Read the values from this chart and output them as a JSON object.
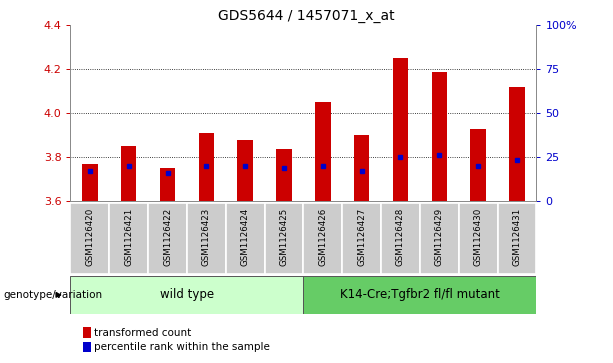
{
  "title": "GDS5644 / 1457071_x_at",
  "samples": [
    "GSM1126420",
    "GSM1126421",
    "GSM1126422",
    "GSM1126423",
    "GSM1126424",
    "GSM1126425",
    "GSM1126426",
    "GSM1126427",
    "GSM1126428",
    "GSM1126429",
    "GSM1126430",
    "GSM1126431"
  ],
  "transformed_count": [
    3.77,
    3.85,
    3.75,
    3.91,
    3.88,
    3.84,
    4.05,
    3.9,
    4.25,
    4.19,
    3.93,
    4.12
  ],
  "percentile_rank": [
    3.74,
    3.76,
    3.73,
    3.76,
    3.76,
    3.75,
    3.76,
    3.74,
    3.8,
    3.81,
    3.76,
    3.79
  ],
  "ymin": 3.6,
  "ymax": 4.4,
  "y_ticks": [
    3.6,
    3.8,
    4.0,
    4.2,
    4.4
  ],
  "right_y_ticks": [
    0,
    25,
    50,
    75,
    100
  ],
  "right_y_labels": [
    "0",
    "25",
    "50",
    "75",
    "100%"
  ],
  "bar_color": "#cc0000",
  "dot_color": "#0000cc",
  "grid_color": "#000000",
  "left_tick_color": "#cc0000",
  "right_tick_color": "#0000cc",
  "group1_label": "wild type",
  "group2_label": "K14-Cre;Tgfbr2 fl/fl mutant",
  "group1_color": "#ccffcc",
  "group2_color": "#66cc66",
  "group1_indices": [
    0,
    1,
    2,
    3,
    4,
    5
  ],
  "group2_indices": [
    6,
    7,
    8,
    9,
    10,
    11
  ],
  "genotype_label": "genotype/variation",
  "legend_red_label": "transformed count",
  "legend_blue_label": "percentile rank within the sample",
  "bar_width": 0.4,
  "sample_box_color": "#cccccc",
  "figsize": [
    6.13,
    3.63
  ],
  "dpi": 100
}
